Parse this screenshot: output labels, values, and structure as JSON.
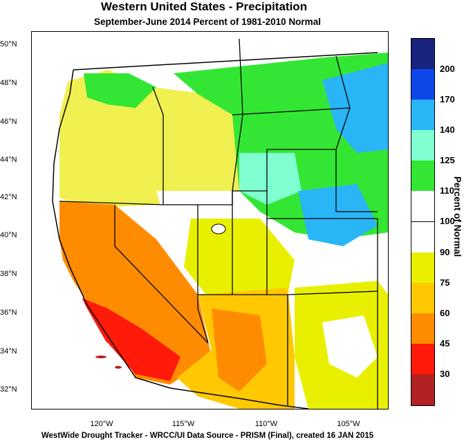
{
  "title": "Western United States - Precipitation",
  "subtitle": "September-June 2014  Percent of 1981-2010 Normal",
  "footer": "WestWide Drought Tracker - WRCC/UI  Data Source - PRISM (Final), created 16 JAN 2015",
  "lat_ticks": [
    "50°N",
    "48°N",
    "46°N",
    "44°N",
    "42°N",
    "40°N",
    "38°N",
    "36°N",
    "34°N",
    "32°N"
  ],
  "lon_ticks": [
    "120°W",
    "115°W",
    "110°W",
    "105°W"
  ],
  "legend": {
    "title": "Percent of Normal",
    "labels": [
      "200",
      "170",
      "140",
      "125",
      "110",
      "100",
      "90",
      "75",
      "60",
      "45",
      "30"
    ],
    "colors": [
      "#1a237e",
      "#0d47e8",
      "#29b6f6",
      "#80ffd0",
      "#33e633",
      "#ffffff",
      "#ffffff",
      "#e8f000",
      "#ffc800",
      "#ff8c00",
      "#ff1a0a",
      "#b22222"
    ]
  }
}
